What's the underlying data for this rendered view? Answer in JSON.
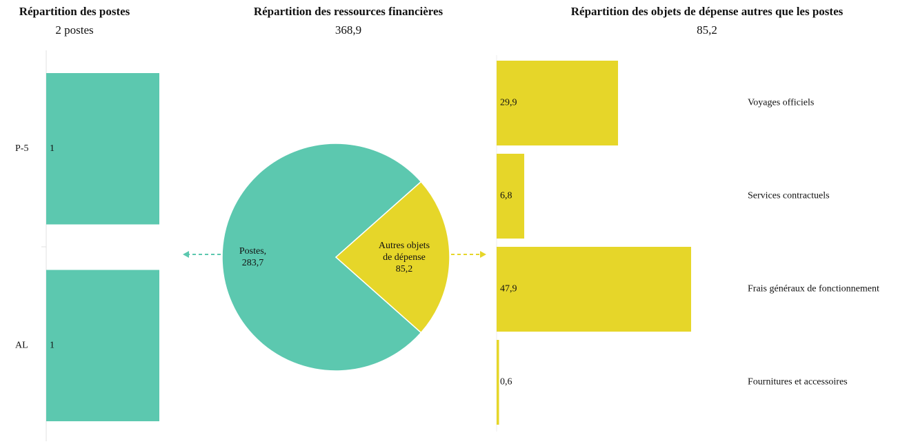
{
  "chart_data": [
    {
      "type": "bar",
      "orientation": "horizontal",
      "title": "Répartition des postes",
      "subtitle": "2 postes",
      "categories": [
        "P-5",
        "AL"
      ],
      "values": [
        1,
        1
      ],
      "color": "#5cc8af"
    },
    {
      "type": "pie",
      "title": "Répartition des ressources financières",
      "subtitle": "368,9",
      "categories": [
        "Postes,",
        "Autres objets de dépense"
      ],
      "values": [
        283.7,
        85.2
      ],
      "value_labels": [
        "283,7",
        "85,2"
      ],
      "colors": [
        "#5cc8af",
        "#e6d629"
      ]
    },
    {
      "type": "bar",
      "orientation": "horizontal",
      "title": "Répartition des objets de dépense autres que les postes",
      "subtitle": "85,2",
      "categories": [
        "Voyages officiels",
        "Services contractuels",
        "Frais généraux de fonctionnement",
        "Fournitures et accessoires"
      ],
      "values": [
        29.9,
        6.8,
        47.9,
        0.6
      ],
      "value_labels": [
        "29,9",
        "6,8",
        "47,9",
        "0,6"
      ],
      "color": "#e6d629"
    }
  ]
}
